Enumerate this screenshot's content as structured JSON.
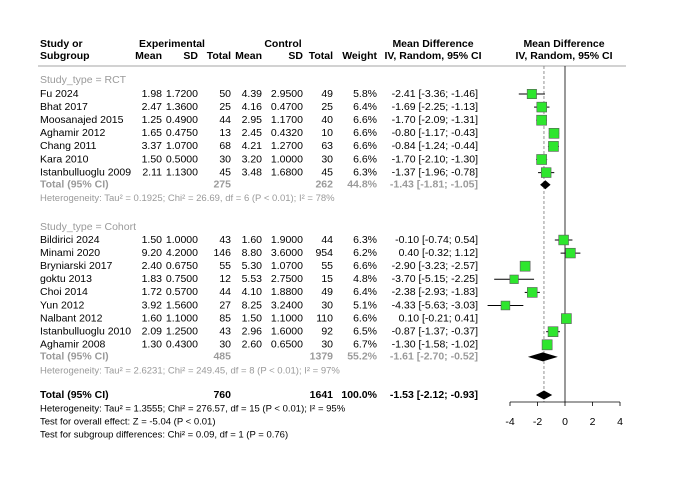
{
  "chart_data": {
    "type": "forest",
    "headers": {
      "study": [
        "Study or",
        "Subgroup"
      ],
      "experimental": "Experimental",
      "control": "Control",
      "mean": "Mean",
      "sd": "SD",
      "total": "Total",
      "weight": "Weight",
      "md": "Mean Difference",
      "md_sub": "IV, Random, 95% CI",
      "plot_title": "Mean Difference",
      "plot_sub": "IV, Random, 95% CI"
    },
    "groups": [
      {
        "label": "Study_type = RCT",
        "studies": [
          {
            "cells": [
              "Fu 2024",
              "1.98",
              "1.7200",
              "50",
              "4.39",
              "2.9500",
              "49"
            ],
            "weight": 5.8,
            "weight_label": "5.8%",
            "values": [
              -2.41,
              -3.36,
              -1.46
            ],
            "ci_label": "-2.41 [-3.36; -1.46]"
          },
          {
            "cells": [
              "Bhat 2017",
              "2.47",
              "1.3600",
              "25",
              "4.16",
              "0.4700",
              "25"
            ],
            "weight": 6.4,
            "weight_label": "6.4%",
            "values": [
              -1.69,
              -2.25,
              -1.13
            ],
            "ci_label": "-1.69 [-2.25; -1.13]"
          },
          {
            "cells": [
              "Moosanajed 2015",
              "1.25",
              "0.4900",
              "44",
              "2.95",
              "1.1700",
              "40"
            ],
            "weight": 6.6,
            "weight_label": "6.6%",
            "values": [
              -1.7,
              -2.09,
              -1.31
            ],
            "ci_label": "-1.70 [-2.09; -1.31]"
          },
          {
            "cells": [
              "Aghamir 2012",
              "1.65",
              "0.4750",
              "13",
              "2.45",
              "0.4320",
              "10"
            ],
            "weight": 6.6,
            "weight_label": "6.6%",
            "values": [
              -0.8,
              -1.17,
              -0.43
            ],
            "ci_label": "-0.80 [-1.17; -0.43]"
          },
          {
            "cells": [
              "Chang 2011",
              "3.37",
              "1.0700",
              "68",
              "4.21",
              "1.2700",
              "63"
            ],
            "weight": 6.6,
            "weight_label": "6.6%",
            "values": [
              -0.84,
              -1.24,
              -0.44
            ],
            "ci_label": "-0.84 [-1.24; -0.44]"
          },
          {
            "cells": [
              "Kara 2010",
              "1.50",
              "0.5000",
              "30",
              "3.20",
              "1.0000",
              "30"
            ],
            "weight": 6.6,
            "weight_label": "6.6%",
            "values": [
              -1.7,
              -2.1,
              -1.3
            ],
            "ci_label": "-1.70 [-2.10; -1.30]"
          },
          {
            "cells": [
              "Istanbulluoglu 2009",
              "2.11",
              "1.1300",
              "45",
              "3.48",
              "1.6800",
              "45"
            ],
            "weight": 6.3,
            "weight_label": "6.3%",
            "values": [
              -1.37,
              -1.96,
              -0.78
            ],
            "ci_label": "-1.37 [-1.96; -0.78]"
          }
        ],
        "total": {
          "label": "Total (95% CI)",
          "cells": [
            "275",
            "262"
          ],
          "weight_label": "44.8%",
          "values": [
            -1.43,
            -1.81,
            -1.05
          ],
          "ci_label": "-1.43 [-1.81; -1.05]"
        },
        "heterogeneity": "Heterogeneity: Tau² = 0.1925; Chi² = 26.69, df = 6 (P < 0.01); I² = 78%"
      },
      {
        "label": "Study_type = Cohort",
        "studies": [
          {
            "cells": [
              "Bildirici 2024",
              "1.50",
              "1.0000",
              "43",
              "1.60",
              "1.9000",
              "44"
            ],
            "weight": 6.3,
            "weight_label": "6.3%",
            "values": [
              -0.1,
              -0.74,
              0.54
            ],
            "ci_label": "-0.10 [-0.74; 0.54]"
          },
          {
            "cells": [
              "Minami 2020",
              "9.20",
              "4.2000",
              "146",
              "8.80",
              "3.6000",
              "954"
            ],
            "weight": 6.2,
            "weight_label": "6.2%",
            "values": [
              0.4,
              -0.32,
              1.12
            ],
            "ci_label": "0.40 [-0.32; 1.12]"
          },
          {
            "cells": [
              "Bryniarski 2017",
              "2.40",
              "0.6750",
              "55",
              "5.30",
              "1.0700",
              "55"
            ],
            "weight": 6.6,
            "weight_label": "6.6%",
            "values": [
              -2.9,
              -3.23,
              -2.57
            ],
            "ci_label": "-2.90 [-3.23; -2.57]"
          },
          {
            "cells": [
              "goktu 2013",
              "1.83",
              "0.7500",
              "12",
              "5.53",
              "2.7500",
              "15"
            ],
            "weight": 4.8,
            "weight_label": "4.8%",
            "values": [
              -3.7,
              -5.15,
              -2.25
            ],
            "ci_label": "-3.70 [-5.15; -2.25]"
          },
          {
            "cells": [
              "Choi 2014",
              "1.72",
              "0.5700",
              "44",
              "4.10",
              "1.8800",
              "49"
            ],
            "weight": 6.4,
            "weight_label": "6.4%",
            "values": [
              -2.38,
              -2.93,
              -1.83
            ],
            "ci_label": "-2.38 [-2.93; -1.83]"
          },
          {
            "cells": [
              "Yun 2012",
              "3.92",
              "1.5600",
              "27",
              "8.25",
              "3.2400",
              "30"
            ],
            "weight": 5.1,
            "weight_label": "5.1%",
            "values": [
              -4.33,
              -5.63,
              -3.03
            ],
            "ci_label": "-4.33 [-5.63; -3.03]"
          },
          {
            "cells": [
              "Nalbant 2012",
              "1.60",
              "1.1000",
              "85",
              "1.50",
              "1.1000",
              "110"
            ],
            "weight": 6.6,
            "weight_label": "6.6%",
            "values": [
              0.1,
              -0.21,
              0.41
            ],
            "ci_label": "0.10 [-0.21; 0.41]"
          },
          {
            "cells": [
              "Istanbulluoglu 2010",
              "2.09",
              "1.2500",
              "43",
              "2.96",
              "1.6000",
              "92"
            ],
            "weight": 6.5,
            "weight_label": "6.5%",
            "values": [
              -0.87,
              -1.37,
              -0.37
            ],
            "ci_label": "-0.87 [-1.37; -0.37]"
          },
          {
            "cells": [
              "Aghamir 2008",
              "1.30",
              "0.4300",
              "30",
              "2.60",
              "0.6500",
              "30"
            ],
            "weight": 6.7,
            "weight_label": "6.7%",
            "values": [
              -1.3,
              -1.58,
              -1.02
            ],
            "ci_label": "-1.30 [-1.58; -1.02]"
          }
        ],
        "total": {
          "label": "Total (95% CI)",
          "cells": [
            "485",
            "1379"
          ],
          "weight_label": "55.2%",
          "values": [
            -1.61,
            -2.7,
            -0.52
          ],
          "ci_label": "-1.61 [-2.70; -0.52]"
        },
        "heterogeneity": "Heterogeneity: Tau² = 2.6231; Chi² = 249.45, df = 8 (P < 0.01); I² = 97%"
      }
    ],
    "overall": {
      "label": "Total (95% CI)",
      "cells": [
        "760",
        "1641"
      ],
      "weight_label": "100.0%",
      "values": [
        -1.53,
        -2.12,
        -0.93
      ],
      "ci_label": "-1.53 [-2.12; -0.93]"
    },
    "notes": [
      "Heterogeneity: Tau² = 1.3555; Chi² = 276.57, df = 15 (P < 0.01); I² = 95%",
      "Test for overall effect: Z = -5.04 (P < 0.01)",
      "Test for subgroup differences: Chi² = 0.09, df = 1 (P = 0.76)"
    ],
    "xlim": [
      -4,
      4
    ],
    "xticks": [
      -4,
      -2,
      0,
      2,
      4
    ],
    "square_color": "#2ee62e"
  }
}
